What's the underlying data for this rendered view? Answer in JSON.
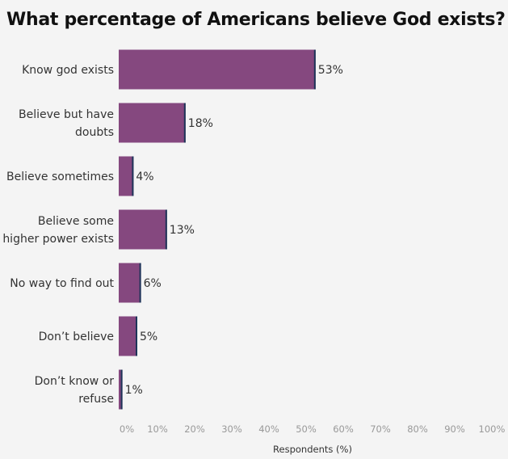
{
  "chart_data": {
    "type": "bar",
    "orientation": "horizontal",
    "title": "What percentage of Americans believe God exists?",
    "xlabel": "Respondents (%)",
    "ylabel": "",
    "categories": [
      [
        "Know god exists"
      ],
      [
        "Believe but have",
        "doubts"
      ],
      [
        "Believe sometimes"
      ],
      [
        "Believe some",
        "higher power exists"
      ],
      [
        "No way to find out"
      ],
      [
        "Don’t believe"
      ],
      [
        "Don’t know or",
        "refuse"
      ]
    ],
    "values": [
      53,
      18,
      4,
      13,
      6,
      5,
      1
    ],
    "data_labels": [
      "53%",
      "18%",
      "4%",
      "13%",
      "6%",
      "5%",
      "1%"
    ],
    "xlim": [
      0,
      100
    ],
    "xticks": [
      "0%",
      "10%",
      "20%",
      "30%",
      "40%",
      "50%",
      "60%",
      "70%",
      "80%",
      "90%",
      "100%"
    ],
    "grid": false,
    "colors": {
      "bar": "#85487f",
      "bar_end": "#1e3559"
    }
  }
}
